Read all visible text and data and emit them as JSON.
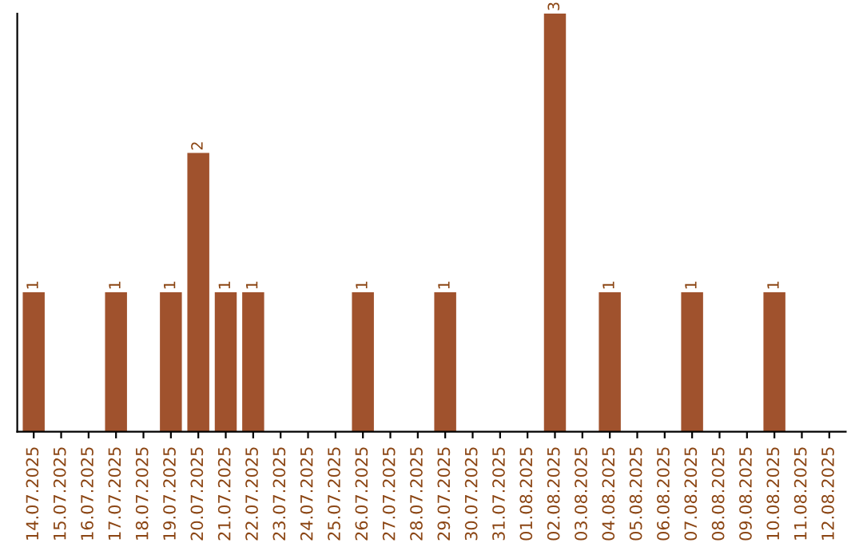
{
  "chart_data": {
    "type": "bar",
    "categories": [
      "14.07.2025",
      "15.07.2025",
      "16.07.2025",
      "17.07.2025",
      "18.07.2025",
      "19.07.2025",
      "20.07.2025",
      "21.07.2025",
      "22.07.2025",
      "23.07.2025",
      "24.07.2025",
      "25.07.2025",
      "26.07.2025",
      "27.07.2025",
      "28.07.2025",
      "29.07.2025",
      "30.07.2025",
      "31.07.2025",
      "01.08.2025",
      "02.08.2025",
      "03.08.2025",
      "04.08.2025",
      "05.08.2025",
      "06.08.2025",
      "07.08.2025",
      "08.08.2025",
      "09.08.2025",
      "10.08.2025",
      "11.08.2025",
      "12.08.2025"
    ],
    "values": [
      1,
      0,
      0,
      1,
      0,
      1,
      2,
      1,
      1,
      0,
      0,
      0,
      1,
      0,
      0,
      1,
      0,
      0,
      0,
      3,
      0,
      1,
      0,
      0,
      1,
      0,
      0,
      1,
      0,
      0
    ],
    "value_labels": [
      "1",
      null,
      null,
      "1",
      null,
      "1",
      "2",
      "1",
      "1",
      null,
      null,
      null,
      "1",
      null,
      null,
      "1",
      null,
      null,
      null,
      "3",
      null,
      "1",
      null,
      null,
      "1",
      null,
      null,
      "1",
      null,
      null
    ],
    "color": "#a0522d",
    "tick_labels": "x"
  }
}
